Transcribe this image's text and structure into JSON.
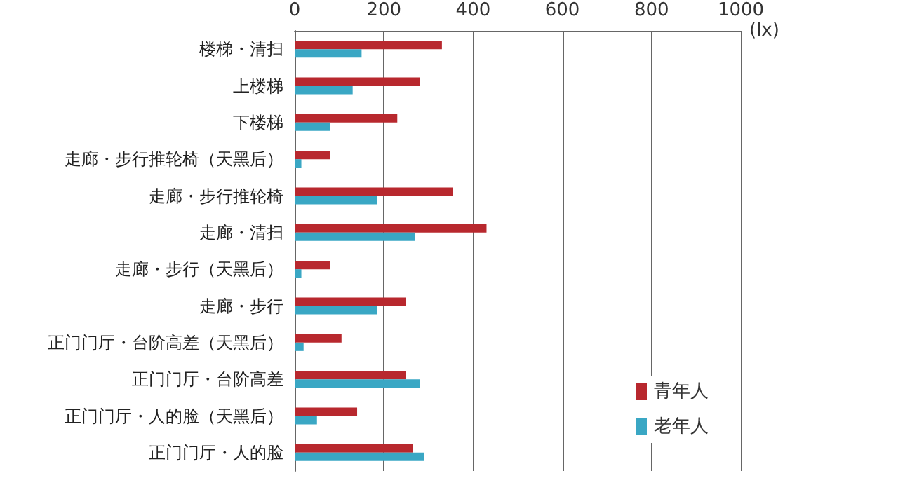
{
  "chart_data": {
    "type": "bar",
    "orientation": "horizontal",
    "xlabel": "(lx)",
    "categories": [
      "楼梯・清扫",
      "上楼梯",
      "下楼梯",
      "走廊・步行推轮椅（天黑后）",
      "走廊・步行推轮椅",
      "走廊・清扫",
      "走廊・步行（天黑后）",
      "走廊・步行",
      "正门门厅・台阶高差（天黑后）",
      "正门门厅・台阶高差",
      "正门门厅・人的脸（天黑后）",
      "正门门厅・人的脸"
    ],
    "series": [
      {
        "name": "青年人",
        "color": "#b8282e",
        "values": [
          330,
          280,
          230,
          80,
          355,
          430,
          80,
          250,
          105,
          250,
          140,
          265
        ]
      },
      {
        "name": "老年人",
        "color": "#3aa7c4",
        "values": [
          150,
          130,
          80,
          15,
          185,
          270,
          15,
          185,
          20,
          280,
          50,
          290
        ]
      }
    ],
    "xlim": [
      0,
      1000
    ],
    "xticks": [
      0,
      200,
      400,
      600,
      800,
      1000
    ],
    "grid": "x",
    "legend": "bottom right"
  }
}
